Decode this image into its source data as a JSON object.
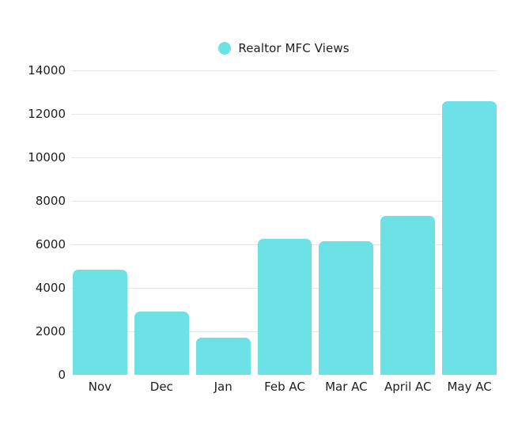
{
  "colors": {
    "bar": "#6CE2E6",
    "grid": "#e7e7e7",
    "text": "#1e1e1e"
  },
  "legend": {
    "label": "Realtor MFC Views"
  },
  "chart_data": {
    "type": "bar",
    "title": "",
    "xlabel": "",
    "ylabel": "",
    "categories": [
      "Nov",
      "Dec",
      "Jan",
      "Feb AC",
      "Mar AC",
      "April AC",
      "May AC"
    ],
    "values": [
      4850,
      2900,
      1700,
      6250,
      6150,
      7300,
      12600
    ],
    "ylim": [
      0,
      14000
    ],
    "ytick_step": 2000,
    "ytick_labels": [
      "0",
      "2000",
      "4000",
      "6000",
      "8000",
      "10000",
      "12000",
      "14000"
    ],
    "grid": "horizontal",
    "legend_entries": [
      "Realtor MFC Views"
    ],
    "legend_position": "top-center"
  }
}
